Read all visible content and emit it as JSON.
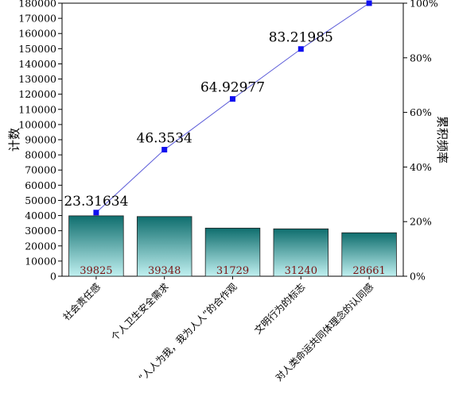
{
  "chart_data": {
    "type": "pareto",
    "categories": [
      "社会责任感",
      "个人卫生安全需求",
      "“人人为我，我为人人”的合作观",
      "文明行为的标志",
      "对人类命运共同体理念的认同感"
    ],
    "series": [
      {
        "type": "bar",
        "values": [
          39825,
          39348,
          31729,
          31240,
          28661
        ]
      },
      {
        "type": "line",
        "values": [
          23.31634,
          46.3534,
          64.92977,
          83.21985,
          100
        ]
      }
    ],
    "bar_labels": [
      "39825",
      "39348",
      "31729",
      "31240",
      "28661"
    ],
    "line_labels": [
      "23.31634",
      "46.3534",
      "64.92977",
      "83.21985",
      "100"
    ],
    "ylabel": "计数",
    "ylabel_right": "累积频率",
    "ylim": [
      0,
      180000
    ],
    "yticks": [
      0,
      10000,
      20000,
      30000,
      40000,
      50000,
      60000,
      70000,
      80000,
      90000,
      100000,
      110000,
      120000,
      130000,
      140000,
      150000,
      160000,
      170000,
      180000
    ],
    "ylim_right": [
      0,
      100
    ],
    "yticks_right": [
      "0%",
      "20%",
      "40%",
      "60%",
      "80%",
      "100%"
    ],
    "grid": false,
    "colors": {
      "bar_top": "#0f6e6e",
      "bar_bottom": "#c0f0f0",
      "line": "#5a5ad8",
      "marker": "#1010f0",
      "bar_label": "#7a1515"
    }
  }
}
